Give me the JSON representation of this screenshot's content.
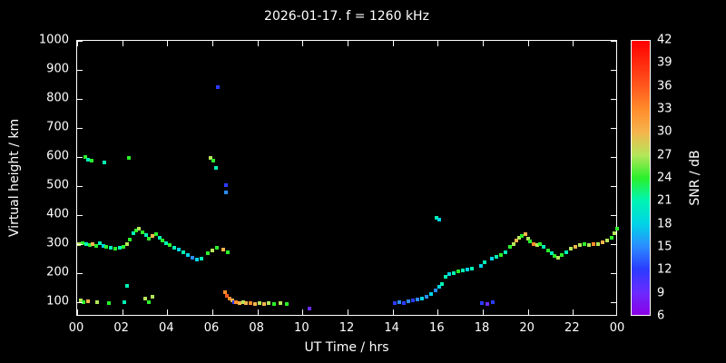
{
  "title": "2026-01-17. f = 1260 kHz",
  "axes": {
    "xlabel": "UT Time / hrs",
    "ylabel": "Virtual height / km",
    "xlim": [
      0,
      24
    ],
    "ylim": [
      50,
      1000
    ],
    "x_ticks": [
      {
        "pos": 0,
        "label": "00"
      },
      {
        "pos": 2,
        "label": "02"
      },
      {
        "pos": 4,
        "label": "04"
      },
      {
        "pos": 6,
        "label": "06"
      },
      {
        "pos": 8,
        "label": "08"
      },
      {
        "pos": 10,
        "label": "10"
      },
      {
        "pos": 12,
        "label": "12"
      },
      {
        "pos": 14,
        "label": "14"
      },
      {
        "pos": 16,
        "label": "16"
      },
      {
        "pos": 18,
        "label": "18"
      },
      {
        "pos": 20,
        "label": "20"
      },
      {
        "pos": 22,
        "label": "22"
      },
      {
        "pos": 24,
        "label": "00"
      }
    ],
    "y_ticks": [
      1000,
      900,
      800,
      700,
      600,
      500,
      400,
      300,
      200,
      100
    ],
    "grid": false
  },
  "colorbar": {
    "label": "SNR / dB",
    "min": 6,
    "max": 42,
    "ticks": [
      42,
      39,
      36,
      33,
      30,
      27,
      24,
      21,
      18,
      15,
      12,
      9,
      6
    ],
    "stops": [
      {
        "v": 6,
        "c": "#8a00e6"
      },
      {
        "v": 9,
        "c": "#6a2bff"
      },
      {
        "v": 12,
        "c": "#2b3cff"
      },
      {
        "v": 15,
        "c": "#2b8cff"
      },
      {
        "v": 18,
        "c": "#00d4e6"
      },
      {
        "v": 21,
        "c": "#00f5b4"
      },
      {
        "v": 24,
        "c": "#2bf02b"
      },
      {
        "v": 27,
        "c": "#b4e65a"
      },
      {
        "v": 30,
        "c": "#f5b44d"
      },
      {
        "v": 33,
        "c": "#ff8c2b"
      },
      {
        "v": 36,
        "c": "#ff5a1e"
      },
      {
        "v": 39,
        "c": "#ff2b0f"
      },
      {
        "v": 42,
        "c": "#ff0000"
      }
    ]
  },
  "chart_data": {
    "type": "scatter",
    "title": "2026-01-17. f = 1260 kHz",
    "xlabel": "UT Time / hrs",
    "ylabel": "Virtual height / km",
    "xlim": [
      0,
      24
    ],
    "ylim": [
      50,
      1000
    ],
    "value_label": "SNR / dB",
    "points_format": "[ut_hours, virtual_height_km, snr_db]",
    "points": [
      [
        0.1,
        300,
        27
      ],
      [
        0.25,
        304,
        24
      ],
      [
        0.4,
        299,
        21
      ],
      [
        0.55,
        297,
        24
      ],
      [
        0.7,
        301,
        30
      ],
      [
        0.85,
        295,
        24
      ],
      [
        1.0,
        302,
        21
      ],
      [
        1.15,
        294,
        18
      ],
      [
        1.3,
        290,
        24
      ],
      [
        1.5,
        288,
        21
      ],
      [
        1.7,
        283,
        24
      ],
      [
        1.9,
        286,
        21
      ],
      [
        2.05,
        291,
        24
      ],
      [
        2.2,
        301,
        27
      ],
      [
        2.35,
        316,
        24
      ],
      [
        2.5,
        336,
        21
      ],
      [
        2.62,
        346,
        24
      ],
      [
        2.75,
        352,
        27
      ],
      [
        2.9,
        341,
        24
      ],
      [
        3.05,
        331,
        21
      ],
      [
        3.2,
        318,
        24
      ],
      [
        3.35,
        329,
        30
      ],
      [
        3.5,
        333,
        24
      ],
      [
        3.65,
        321,
        21
      ],
      [
        3.8,
        311,
        24
      ],
      [
        3.95,
        304,
        21
      ],
      [
        4.1,
        297,
        24
      ],
      [
        4.3,
        289,
        21
      ],
      [
        4.5,
        281,
        18
      ],
      [
        4.7,
        271,
        21
      ],
      [
        4.9,
        261,
        18
      ],
      [
        5.1,
        252,
        15
      ],
      [
        5.3,
        247,
        18
      ],
      [
        5.5,
        250,
        21
      ],
      [
        5.8,
        268,
        24
      ],
      [
        6.0,
        279,
        27
      ],
      [
        6.2,
        286,
        24
      ],
      [
        6.5,
        281,
        30
      ],
      [
        6.7,
        273,
        24
      ],
      [
        0.35,
        601,
        24
      ],
      [
        0.5,
        592,
        21
      ],
      [
        0.65,
        587,
        24
      ],
      [
        1.2,
        581,
        21
      ],
      [
        2.3,
        596,
        24
      ],
      [
        5.9,
        598,
        27
      ],
      [
        6.05,
        589,
        24
      ],
      [
        6.15,
        562,
        21
      ],
      [
        6.25,
        840,
        12
      ],
      [
        6.6,
        502,
        12
      ],
      [
        6.62,
        479,
        15
      ],
      [
        15.95,
        392,
        21
      ],
      [
        16.08,
        384,
        18
      ],
      [
        0.15,
        106,
        27
      ],
      [
        0.3,
        100,
        24
      ],
      [
        0.5,
        103,
        30
      ],
      [
        0.9,
        100,
        27
      ],
      [
        1.4,
        98,
        24
      ],
      [
        2.1,
        100,
        21
      ],
      [
        2.2,
        156,
        21
      ],
      [
        3.0,
        111,
        27
      ],
      [
        3.2,
        100,
        24
      ],
      [
        3.35,
        119,
        27
      ],
      [
        6.55,
        133,
        33
      ],
      [
        6.65,
        123,
        36
      ],
      [
        6.75,
        113,
        33
      ],
      [
        6.9,
        106,
        30
      ],
      [
        6.95,
        100,
        12
      ],
      [
        7.05,
        101,
        33
      ],
      [
        7.2,
        98,
        30
      ],
      [
        7.35,
        100,
        27
      ],
      [
        7.5,
        96,
        30
      ],
      [
        7.7,
        98,
        33
      ],
      [
        7.9,
        95,
        30
      ],
      [
        8.1,
        98,
        27
      ],
      [
        8.3,
        95,
        30
      ],
      [
        8.5,
        97,
        27
      ],
      [
        8.75,
        95,
        24
      ],
      [
        9.0,
        97,
        27
      ],
      [
        9.3,
        95,
        24
      ],
      [
        10.3,
        78,
        9
      ],
      [
        14.1,
        98,
        12
      ],
      [
        14.3,
        100,
        15
      ],
      [
        14.5,
        98,
        12
      ],
      [
        14.7,
        102,
        15
      ],
      [
        14.9,
        105,
        12
      ],
      [
        15.1,
        110,
        15
      ],
      [
        15.3,
        112,
        18
      ],
      [
        15.5,
        118,
        15
      ],
      [
        15.7,
        128,
        18
      ],
      [
        15.9,
        141,
        15
      ],
      [
        16.05,
        153,
        18
      ],
      [
        16.2,
        161,
        21
      ],
      [
        16.35,
        189,
        21
      ],
      [
        16.5,
        196,
        18
      ],
      [
        16.7,
        201,
        21
      ],
      [
        16.9,
        206,
        24
      ],
      [
        17.1,
        209,
        21
      ],
      [
        17.3,
        213,
        18
      ],
      [
        17.5,
        216,
        21
      ],
      [
        17.9,
        226,
        18
      ],
      [
        18.1,
        236,
        21
      ],
      [
        18.4,
        249,
        18
      ],
      [
        18.6,
        256,
        21
      ],
      [
        18.8,
        263,
        24
      ],
      [
        19.0,
        273,
        21
      ],
      [
        17.95,
        98,
        12
      ],
      [
        18.2,
        95,
        9
      ],
      [
        18.45,
        100,
        12
      ],
      [
        19.2,
        291,
        24
      ],
      [
        19.35,
        301,
        27
      ],
      [
        19.5,
        311,
        30
      ],
      [
        19.62,
        321,
        27
      ],
      [
        19.75,
        329,
        24
      ],
      [
        19.9,
        333,
        30
      ],
      [
        20.0,
        319,
        27
      ],
      [
        20.1,
        309,
        24
      ],
      [
        20.25,
        301,
        33
      ],
      [
        20.4,
        296,
        27
      ],
      [
        20.55,
        301,
        24
      ],
      [
        20.7,
        291,
        21
      ],
      [
        20.9,
        279,
        24
      ],
      [
        21.05,
        269,
        21
      ],
      [
        21.2,
        259,
        24
      ],
      [
        21.35,
        253,
        27
      ],
      [
        21.5,
        263,
        24
      ],
      [
        21.7,
        273,
        21
      ],
      [
        21.9,
        283,
        27
      ],
      [
        22.1,
        291,
        30
      ],
      [
        22.3,
        297,
        27
      ],
      [
        22.5,
        301,
        24
      ],
      [
        22.7,
        296,
        27
      ],
      [
        22.9,
        299,
        33
      ],
      [
        23.1,
        301,
        27
      ],
      [
        23.3,
        306,
        30
      ],
      [
        23.5,
        311,
        27
      ],
      [
        23.7,
        323,
        24
      ],
      [
        23.85,
        336,
        27
      ],
      [
        23.95,
        352,
        24
      ]
    ]
  }
}
